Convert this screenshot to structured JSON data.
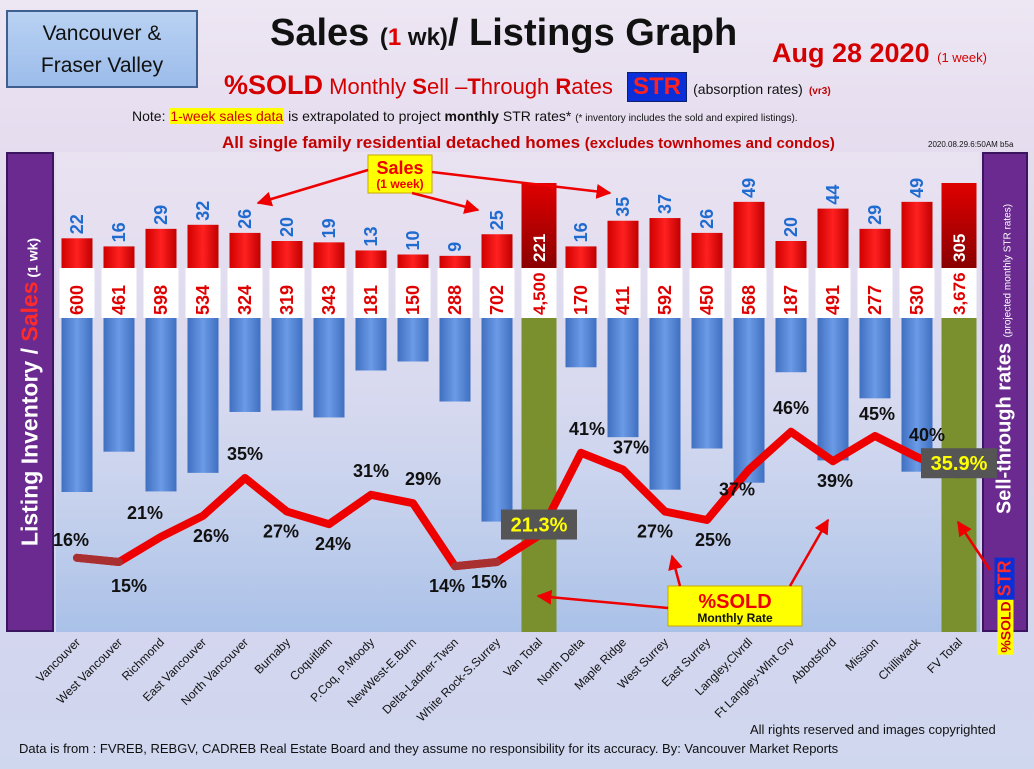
{
  "header": {
    "region_line1": "Vancouver &",
    "region_line2": "Fraser Valley",
    "title_part1": "Sales ",
    "title_paren_open": "(",
    "title_num": "1",
    "title_paren_rest": " wk)",
    "title_part2": "/ Listings Graph",
    "date": "Aug 28  2020",
    "date_note": "(1 week)",
    "sold_label": "%SOLD",
    "sold_sub_prefix": " Monthly ",
    "sold_S": "S",
    "sold_ell": "ell –",
    "sold_T": "T",
    "sold_hrough": "hrough ",
    "sold_R": "R",
    "sold_ates": "ates ",
    "str_badge": "STR",
    "absorption": "(absorption rates)",
    "vr3": "(vr3)",
    "note_prefix": "Note: ",
    "note_highlight": "1-week sales data",
    "note_middle": " is extrapolated to project ",
    "note_bold": "monthly",
    "note_suffix": " STR rates* ",
    "note_tiny": "(* inventory includes the sold and expired listings).",
    "sfd_main": "All single family residential detached homes ",
    "sfd_sub": "(excludes townhomes and condos)",
    "stamp": "2020.08.29.6:50AM b5a"
  },
  "axis_labels": {
    "left_a": "Listing Inventory ",
    "left_slash": "/ ",
    "left_sales": "Sales",
    "left_small": " (1 wk)",
    "right_main": "Sell-through rates ",
    "right_small": "(projected monthly STR rates)",
    "right_sold": "%SOLD",
    "right_str": "STR"
  },
  "annotations": {
    "sales_callout_line1": "Sales",
    "sales_callout_line2": "(1 week)",
    "sold_callout_line1": "%SOLD",
    "sold_callout_line2": "Monthly Rate",
    "van_total_pct": "21.3%",
    "fv_total_pct": "35.9%"
  },
  "footer": {
    "rights": "All rights reserved and  images copyrighted",
    "source": "Data is from : FVREB, REBGV, CADREB Real Estate Board and they assume no responsibility for its accuracy. By: Vancouver Market Reports"
  },
  "chart_data": {
    "type": "bar",
    "categories": [
      "Vancouver",
      "West Vancouver",
      "Richmond",
      "East Vancouver",
      "North Vancouver",
      "Burnaby",
      "Coquitlam",
      "P.Coq, P.Moody",
      "NewWest-E.Burn",
      "Delta-Ladner-Twsn",
      "White Rock-S.Surrey",
      "Van Total",
      "North Delta",
      "Maple Ridge",
      "West Surrey",
      "East Surrey",
      "Langley,Clvrdl",
      "Ft Langley-Wlnt Grv",
      "Abbotsford",
      "Mission",
      "Chilliwack",
      "FV Total"
    ],
    "series": [
      {
        "name": "Sales",
        "values": [
          22,
          16,
          29,
          32,
          26,
          20,
          19,
          13,
          10,
          9,
          25,
          221,
          16,
          35,
          37,
          26,
          49,
          20,
          44,
          29,
          49,
          305
        ],
        "color": "#ee0000"
      },
      {
        "name": "Listing Inventory",
        "values": [
          600,
          461,
          598,
          534,
          324,
          319,
          343,
          181,
          150,
          288,
          702,
          4500,
          170,
          411,
          592,
          450,
          568,
          187,
          491,
          277,
          530,
          3676
        ],
        "color": "#4a7fd0"
      },
      {
        "name": "%SOLD",
        "values": [
          16,
          15,
          21,
          26,
          35,
          27,
          24,
          31,
          29,
          14,
          15,
          21.3,
          41,
          37,
          27,
          25,
          37,
          46,
          39,
          45,
          40,
          35.9
        ],
        "color": "#ee0000"
      }
    ],
    "total_categories": [
      "Van Total",
      "FV Total"
    ],
    "total_color": "#7a8f2e",
    "pct_labels": [
      "16%",
      "15%",
      "21%",
      "26%",
      "35%",
      "27%",
      "24%",
      "31%",
      "29%",
      "14%",
      "15%",
      "",
      "41%",
      "37%",
      "27%",
      "25%",
      "37%",
      "46%",
      "39%",
      "45%",
      "40%",
      ""
    ],
    "legend": "none",
    "grid": false
  }
}
